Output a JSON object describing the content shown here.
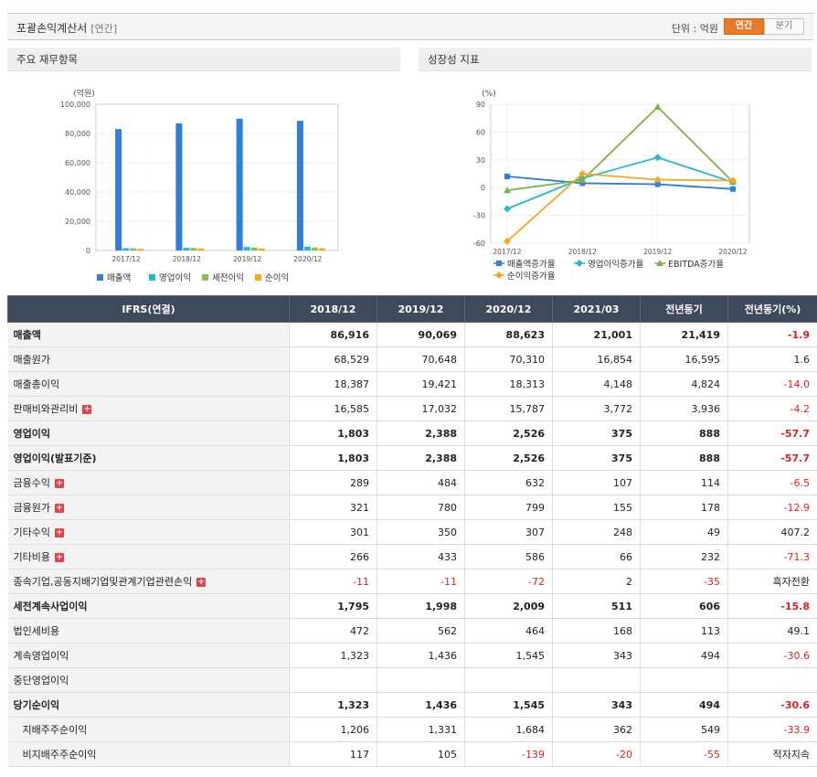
{
  "header": {
    "title": "포괄손익계산서",
    "subtitle": "[연간]",
    "unit_label": "단위 : 억원",
    "toggle_annual": "연간",
    "toggle_quarter": "분기"
  },
  "panels": {
    "left_title": "주요 재무항목",
    "right_title": "성장성 지표"
  },
  "chart_data": [
    {
      "type": "bar",
      "unit_label": "(억원)",
      "categories": [
        "2017/12",
        "2018/12",
        "2019/12",
        "2020/12"
      ],
      "ylim": [
        0,
        100000
      ],
      "yticks": [
        "0",
        "20,000",
        "40,000",
        "60,000",
        "80,000",
        "100,000"
      ],
      "series": [
        {
          "name": "매출액",
          "color": "#2f7ed8",
          "values": [
            83000,
            86916,
            90069,
            88623
          ]
        },
        {
          "name": "영업이익",
          "color": "#22b8cf",
          "values": [
            1600,
            1803,
            2388,
            2526
          ]
        },
        {
          "name": "세전이익",
          "color": "#8bc34a",
          "values": [
            1550,
            1795,
            1998,
            2009
          ]
        },
        {
          "name": "순이익",
          "color": "#f6a623",
          "values": [
            1100,
            1323,
            1436,
            1545
          ]
        }
      ]
    },
    {
      "type": "line",
      "unit_label": "(%)",
      "categories": [
        "2017/12",
        "2018/12",
        "2019/12",
        "2020/12"
      ],
      "ylim": [
        -60,
        90
      ],
      "yticks": [
        "-60",
        "-30",
        "0",
        "30",
        "60",
        "90"
      ],
      "series": [
        {
          "name": "매출액증가율",
          "color": "#2f7ed8",
          "marker": "square",
          "values": [
            12,
            4.7,
            3.6,
            -1.6
          ]
        },
        {
          "name": "영업이익증가율",
          "color": "#22b8cf",
          "marker": "diamond",
          "values": [
            -23,
            10,
            32.5,
            5.8
          ]
        },
        {
          "name": "EBITDA증가율",
          "color": "#7cb342",
          "marker": "triangle",
          "values": [
            -3,
            8,
            87,
            6
          ]
        },
        {
          "name": "순이익증가율",
          "color": "#f6a623",
          "marker": "diamond",
          "values": [
            -58,
            15,
            8.5,
            7.6
          ]
        }
      ]
    }
  ],
  "table": {
    "headers": [
      "IFRS(연결)",
      "2018/12",
      "2019/12",
      "2020/12",
      "2021/03",
      "전년동기",
      "전년동기(%)"
    ],
    "rows": [
      {
        "label": "매출액",
        "bold": true,
        "plus": false,
        "indent": false,
        "cells": [
          "86,916",
          "90,069",
          "88,623",
          "21,001",
          "21,419",
          "-1.9"
        ]
      },
      {
        "label": "매출원가",
        "bold": false,
        "plus": false,
        "indent": false,
        "cells": [
          "68,529",
          "70,648",
          "70,310",
          "16,854",
          "16,595",
          "1.6"
        ]
      },
      {
        "label": "매출총이익",
        "bold": false,
        "plus": false,
        "indent": false,
        "cells": [
          "18,387",
          "19,421",
          "18,313",
          "4,148",
          "4,824",
          "-14.0"
        ]
      },
      {
        "label": "판매비와관리비",
        "bold": false,
        "plus": true,
        "indent": false,
        "cells": [
          "16,585",
          "17,032",
          "15,787",
          "3,772",
          "3,936",
          "-4.2"
        ]
      },
      {
        "label": "영업이익",
        "bold": true,
        "plus": false,
        "indent": false,
        "cells": [
          "1,803",
          "2,388",
          "2,526",
          "375",
          "888",
          "-57.7"
        ]
      },
      {
        "label": "영업이익(발표기준)",
        "bold": true,
        "plus": false,
        "indent": false,
        "cells": [
          "1,803",
          "2,388",
          "2,526",
          "375",
          "888",
          "-57.7"
        ]
      },
      {
        "label": "금융수익",
        "bold": false,
        "plus": true,
        "indent": false,
        "cells": [
          "289",
          "484",
          "632",
          "107",
          "114",
          "-6.5"
        ]
      },
      {
        "label": "금융원가",
        "bold": false,
        "plus": true,
        "indent": false,
        "cells": [
          "321",
          "780",
          "799",
          "155",
          "178",
          "-12.9"
        ]
      },
      {
        "label": "기타수익",
        "bold": false,
        "plus": true,
        "indent": false,
        "cells": [
          "301",
          "350",
          "307",
          "248",
          "49",
          "407.2"
        ]
      },
      {
        "label": "기타비용",
        "bold": false,
        "plus": true,
        "indent": false,
        "cells": [
          "266",
          "433",
          "586",
          "66",
          "232",
          "-71.3"
        ]
      },
      {
        "label": "종속기업,공동지배기업및관계기업관련손익",
        "bold": false,
        "plus": true,
        "indent": false,
        "cells": [
          "-11",
          "-11",
          "-72",
          "2",
          "-35",
          "흑자전환"
        ]
      },
      {
        "label": "세전계속사업이익",
        "bold": true,
        "plus": false,
        "indent": false,
        "cells": [
          "1,795",
          "1,998",
          "2,009",
          "511",
          "606",
          "-15.8"
        ]
      },
      {
        "label": "법인세비용",
        "bold": false,
        "plus": false,
        "indent": false,
        "cells": [
          "472",
          "562",
          "464",
          "168",
          "113",
          "49.1"
        ]
      },
      {
        "label": "계속영업이익",
        "bold": false,
        "plus": false,
        "indent": false,
        "cells": [
          "1,323",
          "1,436",
          "1,545",
          "343",
          "494",
          "-30.6"
        ]
      },
      {
        "label": "중단영업이익",
        "bold": false,
        "plus": false,
        "indent": false,
        "cells": [
          "",
          "",
          "",
          "",
          "",
          ""
        ]
      },
      {
        "label": "당기순이익",
        "bold": true,
        "plus": false,
        "indent": false,
        "cells": [
          "1,323",
          "1,436",
          "1,545",
          "343",
          "494",
          "-30.6"
        ]
      },
      {
        "label": "지배주주순이익",
        "bold": false,
        "plus": false,
        "indent": true,
        "cells": [
          "1,206",
          "1,331",
          "1,684",
          "362",
          "549",
          "-33.9"
        ]
      },
      {
        "label": "비지배주주순이익",
        "bold": false,
        "plus": false,
        "indent": true,
        "cells": [
          "117",
          "105",
          "-139",
          "-20",
          "-55",
          "적자지속"
        ]
      }
    ]
  }
}
